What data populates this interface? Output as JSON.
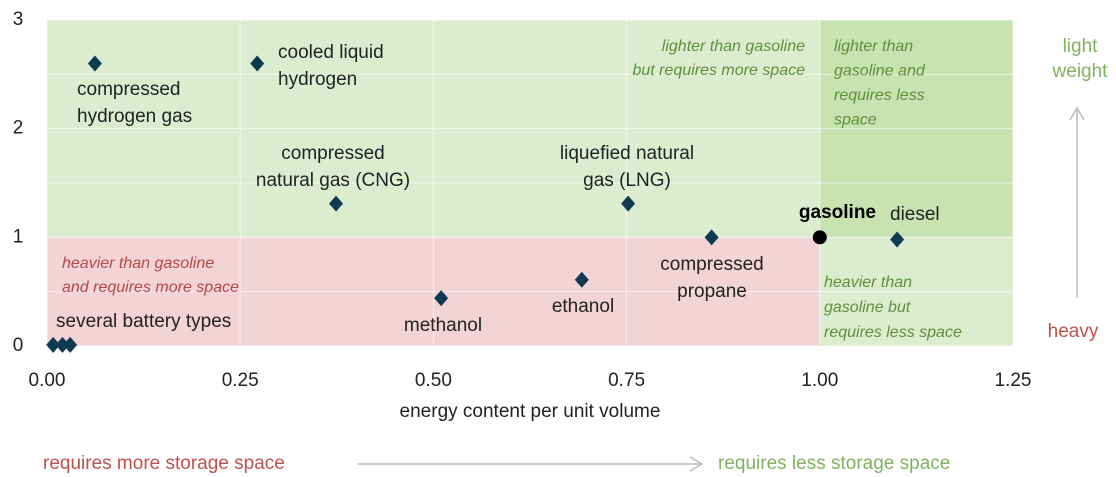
{
  "chart_data": {
    "type": "scatter",
    "x_label": "energy content per unit volume",
    "xlim": [
      0,
      1.25
    ],
    "xticks": [
      {
        "value": 0,
        "label": "0.00"
      },
      {
        "value": 0.25,
        "label": "0.25"
      },
      {
        "value": 0.5,
        "label": "0.50"
      },
      {
        "value": 0.75,
        "label": "0.75"
      },
      {
        "value": 1,
        "label": "1.00"
      },
      {
        "value": 1.25,
        "label": "1.25"
      }
    ],
    "ylim": [
      0,
      3
    ],
    "yticks": [
      0,
      1,
      2,
      3
    ],
    "y_minor_grid": [
      0.5,
      1.5,
      2.5
    ],
    "grid": true,
    "regions": [
      {
        "x": [
          0,
          1
        ],
        "y": [
          1,
          3
        ],
        "color": "#dcedcf",
        "label_color": "#5e8f3c",
        "label": [
          "lighter than gasoline",
          "but requires more space"
        ]
      },
      {
        "x": [
          1,
          1.25
        ],
        "y": [
          1,
          3
        ],
        "color": "#c6e3b1",
        "label_color": "#5e8f3c",
        "label": [
          "lighter than",
          "gasoline and",
          "requires less",
          "space"
        ]
      },
      {
        "x": [
          0,
          1
        ],
        "y": [
          0,
          1
        ],
        "color": "#f2d3d6",
        "label_color": "#b5484a",
        "label": [
          "heavier than gasoline",
          "and requires more space"
        ]
      },
      {
        "x": [
          1,
          1.25
        ],
        "y": [
          0,
          1
        ],
        "color": "#dcedcf",
        "label_color": "#5e8f3c",
        "label": [
          "heavier than",
          "gasoline but",
          "requires less space"
        ]
      }
    ],
    "series": [
      {
        "color": "#0e3a52",
        "marker": "diamond",
        "x": [
          0.062,
          0.272,
          0.374,
          0.752,
          0.86,
          0.692,
          0.51,
          1.1
        ],
        "y": [
          2.6,
          2.6,
          1.31,
          1.31,
          1.0,
          0.61,
          0.44,
          0.98
        ],
        "labels": [
          [
            "compressed",
            "hydrogen gas"
          ],
          [
            "cooled liquid",
            "hydrogen"
          ],
          [
            "compressed",
            "natural gas (CNG)"
          ],
          [
            "liquefied natural",
            "gas (LNG)"
          ],
          [
            "compressed",
            "propane"
          ],
          [
            "ethanol"
          ],
          [
            "methanol"
          ],
          [
            "diesel"
          ]
        ]
      },
      {
        "color": "#0e3a52",
        "marker": "diamond",
        "x": [
          0.008,
          0.02,
          0.03
        ],
        "y": [
          0.01,
          0.01,
          0.01
        ],
        "label": "several battery types"
      },
      {
        "color": "#000000",
        "marker": "circle",
        "x": [
          1.0
        ],
        "y": [
          1.0
        ],
        "label": "gasoline"
      }
    ],
    "side_labels": {
      "top": [
        "light",
        "weight"
      ],
      "bottom": "heavy"
    },
    "bottom_labels": {
      "left": "requires more storage space",
      "right": "requires less storage space"
    }
  }
}
